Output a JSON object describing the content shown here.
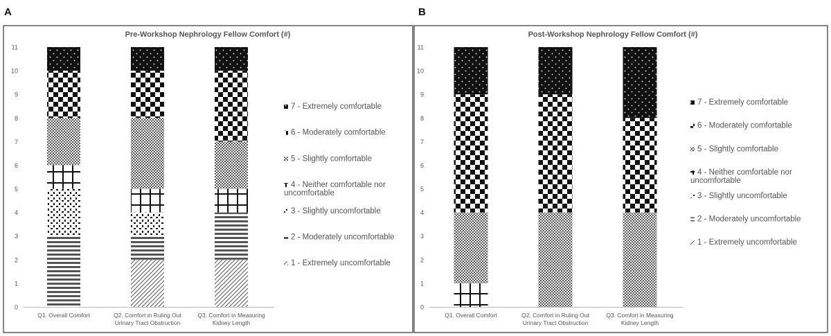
{
  "panels": [
    {
      "letter": "A",
      "chart_data": {
        "type": "bar",
        "stacked": true,
        "title": "Pre-Workshop Nephrology Fellow Comfort (#)",
        "xlabel": "",
        "ylabel": "",
        "ylim": [
          0,
          11
        ],
        "yticks": [
          0,
          1,
          2,
          3,
          4,
          5,
          6,
          7,
          8,
          9,
          10,
          11
        ],
        "grid": false,
        "legend_position": "right",
        "categories": [
          [
            "Q1. Overall Comfort"
          ],
          [
            "Q2. Comfort in Ruling Out",
            "Urinary Tract Obstruction"
          ],
          [
            "Q3. Comfort in Measuring",
            "Kidney Length"
          ]
        ],
        "series": [
          {
            "name": "1 - Extremely uncomfortable",
            "pattern": "diag",
            "values": [
              0,
              2,
              2
            ]
          },
          {
            "name": "2 - Moderately uncomfortable",
            "pattern": "hstripe",
            "values": [
              3,
              1,
              2
            ]
          },
          {
            "name": "3 - Slightly uncomfortable",
            "pattern": "dots",
            "values": [
              2,
              1,
              0
            ]
          },
          {
            "name": "4 - Neither comfortable nor uncomfortable",
            "pattern": "grid",
            "values": [
              1,
              1,
              1
            ]
          },
          {
            "name": "5 - Slightly comfortable",
            "pattern": "fine",
            "values": [
              2,
              3,
              2
            ]
          },
          {
            "name": "6 - Moderately comfortable",
            "pattern": "checker",
            "values": [
              2,
              2,
              3
            ]
          },
          {
            "name": "7 - Extremely comfortable",
            "pattern": "darkdots",
            "values": [
              1,
              1,
              1
            ]
          }
        ]
      }
    },
    {
      "letter": "B",
      "chart_data": {
        "type": "bar",
        "stacked": true,
        "title": "Post-Workshop Nephrology Fellow Comfort (#)",
        "xlabel": "",
        "ylabel": "",
        "ylim": [
          0,
          11
        ],
        "yticks": [
          0,
          1,
          2,
          3,
          4,
          5,
          6,
          7,
          8,
          9,
          10,
          11
        ],
        "grid": false,
        "legend_position": "right",
        "categories": [
          [
            "Q1. Overall Comfort"
          ],
          [
            "Q2. Comfort in Ruling Out",
            "Urinary Tract Obstruction"
          ],
          [
            "Q3. Comfort in Measuring",
            "Kidney Length"
          ]
        ],
        "series": [
          {
            "name": "1 - Extremely uncomfortable",
            "pattern": "diag",
            "values": [
              0,
              0,
              0
            ]
          },
          {
            "name": "2 - Moderately uncomfortable",
            "pattern": "hstripe",
            "values": [
              0,
              0,
              0
            ]
          },
          {
            "name": "3 - Slightly uncomfortable",
            "pattern": "dots",
            "values": [
              0,
              0,
              0
            ]
          },
          {
            "name": "4 - Neither comfortable nor uncomfortable",
            "pattern": "grid",
            "values": [
              1,
              0,
              0
            ]
          },
          {
            "name": "5 - Slightly comfortable",
            "pattern": "fine",
            "values": [
              3,
              4,
              4
            ]
          },
          {
            "name": "6 - Moderately comfortable",
            "pattern": "checker",
            "values": [
              5,
              5,
              4
            ]
          },
          {
            "name": "7 - Extremely comfortable",
            "pattern": "darkdots",
            "values": [
              2,
              2,
              3
            ]
          }
        ]
      }
    }
  ]
}
